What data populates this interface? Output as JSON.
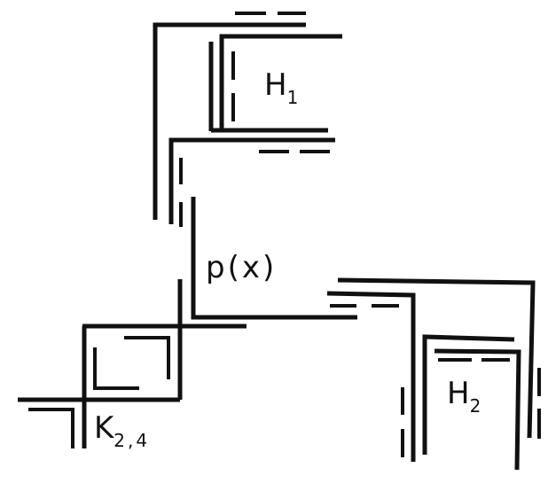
{
  "colors": {
    "stroke": "#111111",
    "background": "#ffffff"
  },
  "labels": {
    "h1": {
      "base": "H",
      "sub": "1"
    },
    "h2": {
      "base": "H",
      "sub": "2"
    },
    "path": "p(x)",
    "k24": {
      "base": "K",
      "sub": "2,4"
    }
  }
}
